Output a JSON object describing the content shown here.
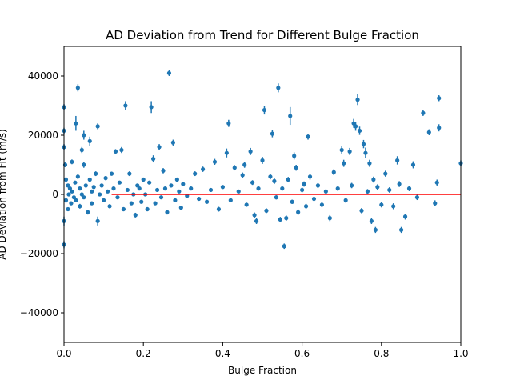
{
  "chart_data": {
    "type": "scatter",
    "title": "AD Deviation from Trend for Different Bulge Fraction",
    "xlabel": "Bulge Fraction",
    "ylabel": "AD Deviation from Fit (m/s)",
    "xlim": [
      0.0,
      1.0
    ],
    "ylim": [
      -50000,
      50000
    ],
    "xticks": [
      0.0,
      0.2,
      0.4,
      0.6,
      0.8,
      1.0
    ],
    "xtick_labels": [
      "0.0",
      "0.2",
      "0.4",
      "0.6",
      "0.8",
      "1.0"
    ],
    "yticks": [
      -40000,
      -20000,
      0,
      20000,
      40000
    ],
    "ytick_labels": [
      "−40000",
      "−20000",
      "0",
      "20000",
      "40000"
    ],
    "grid": false,
    "marker_color": "#1f77b4",
    "reference_line": {
      "y": 0,
      "color": "#ff0000"
    },
    "series": [
      {
        "points": [
          [
            0.0,
            29500,
            1000
          ],
          [
            0.0,
            21500,
            1000
          ],
          [
            0.0,
            16000,
            1000
          ],
          [
            0.0,
            -17000,
            1200
          ],
          [
            0.0,
            -9000,
            1500
          ],
          [
            0.003,
            10000,
            800
          ],
          [
            0.005,
            5000,
            800
          ],
          [
            0.005,
            -2000,
            800
          ],
          [
            0.01,
            3000,
            600
          ],
          [
            0.01,
            -5000,
            600
          ],
          [
            0.012,
            0,
            600
          ],
          [
            0.015,
            2000,
            500
          ],
          [
            0.018,
            -3000,
            500
          ],
          [
            0.02,
            11000,
            800
          ],
          [
            0.02,
            1000,
            600
          ],
          [
            0.025,
            -1000,
            500
          ],
          [
            0.028,
            4000,
            600
          ],
          [
            0.03,
            24000,
            2500
          ],
          [
            0.03,
            -2000,
            500
          ],
          [
            0.035,
            36000,
            1200
          ],
          [
            0.035,
            6000,
            800
          ],
          [
            0.04,
            2000,
            500
          ],
          [
            0.04,
            -4000,
            800
          ],
          [
            0.045,
            15000,
            1000
          ],
          [
            0.045,
            0,
            500
          ],
          [
            0.05,
            20000,
            1500
          ],
          [
            0.05,
            10000,
            1000
          ],
          [
            0.05,
            -1000,
            500
          ],
          [
            0.055,
            3000,
            600
          ],
          [
            0.06,
            -6000,
            800
          ],
          [
            0.065,
            18000,
            1500
          ],
          [
            0.065,
            5000,
            700
          ],
          [
            0.07,
            1000,
            500
          ],
          [
            0.07,
            -3000,
            500
          ],
          [
            0.075,
            2500,
            600
          ],
          [
            0.08,
            7000,
            800
          ],
          [
            0.085,
            23000,
            1000
          ],
          [
            0.085,
            -9000,
            1500
          ],
          [
            0.09,
            0,
            500
          ],
          [
            0.095,
            3000,
            600
          ],
          [
            0.1,
            -2000,
            500
          ],
          [
            0.105,
            5500,
            700
          ],
          [
            0.11,
            1000,
            500
          ],
          [
            0.115,
            -4000,
            700
          ],
          [
            0.12,
            7000,
            700
          ],
          [
            0.125,
            2000,
            600
          ],
          [
            0.13,
            14500,
            800
          ],
          [
            0.135,
            -1000,
            500
          ],
          [
            0.14,
            4000,
            600
          ],
          [
            0.145,
            15000,
            1000
          ],
          [
            0.15,
            -5000,
            700
          ],
          [
            0.155,
            30000,
            1500
          ],
          [
            0.16,
            1500,
            500
          ],
          [
            0.165,
            7000,
            800
          ],
          [
            0.17,
            -3000,
            600
          ],
          [
            0.175,
            0,
            500
          ],
          [
            0.18,
            -7000,
            800
          ],
          [
            0.185,
            3000,
            600
          ],
          [
            0.19,
            2000,
            600
          ],
          [
            0.195,
            -2500,
            600
          ],
          [
            0.2,
            5000,
            700
          ],
          [
            0.205,
            0,
            500
          ],
          [
            0.21,
            -5000,
            700
          ],
          [
            0.215,
            4000,
            600
          ],
          [
            0.22,
            29500,
            2000
          ],
          [
            0.225,
            12000,
            1200
          ],
          [
            0.23,
            -3000,
            600
          ],
          [
            0.235,
            1500,
            600
          ],
          [
            0.24,
            16000,
            1000
          ],
          [
            0.245,
            -1000,
            500
          ],
          [
            0.25,
            8000,
            900
          ],
          [
            0.255,
            2000,
            600
          ],
          [
            0.26,
            -6000,
            800
          ],
          [
            0.265,
            41000,
            1000
          ],
          [
            0.27,
            3000,
            600
          ],
          [
            0.275,
            17500,
            1000
          ],
          [
            0.28,
            -2000,
            600
          ],
          [
            0.285,
            5000,
            700
          ],
          [
            0.29,
            1000,
            500
          ],
          [
            0.295,
            -4500,
            700
          ],
          [
            0.3,
            3500,
            600
          ],
          [
            0.31,
            -500,
            500
          ],
          [
            0.32,
            2000,
            600
          ],
          [
            0.33,
            7000,
            800
          ],
          [
            0.34,
            -1500,
            600
          ],
          [
            0.35,
            8500,
            900
          ],
          [
            0.36,
            -2500,
            600
          ],
          [
            0.37,
            1500,
            600
          ],
          [
            0.38,
            11000,
            1000
          ],
          [
            0.39,
            -5000,
            800
          ],
          [
            0.4,
            2500,
            600
          ],
          [
            0.41,
            14000,
            1500
          ],
          [
            0.415,
            24000,
            1200
          ],
          [
            0.42,
            -2000,
            600
          ],
          [
            0.43,
            9000,
            900
          ],
          [
            0.44,
            1000,
            600
          ],
          [
            0.45,
            6500,
            900
          ],
          [
            0.455,
            10000,
            1000
          ],
          [
            0.46,
            -3500,
            700
          ],
          [
            0.47,
            14500,
            1200
          ],
          [
            0.475,
            4000,
            800
          ],
          [
            0.48,
            -7000,
            900
          ],
          [
            0.485,
            -9000,
            1000
          ],
          [
            0.49,
            2000,
            700
          ],
          [
            0.5,
            11500,
            1200
          ],
          [
            0.505,
            28500,
            1500
          ],
          [
            0.51,
            -5500,
            800
          ],
          [
            0.52,
            6000,
            900
          ],
          [
            0.525,
            20500,
            1200
          ],
          [
            0.53,
            4500,
            1000
          ],
          [
            0.535,
            -1000,
            700
          ],
          [
            0.54,
            36000,
            1500
          ],
          [
            0.545,
            -8500,
            900
          ],
          [
            0.55,
            2000,
            700
          ],
          [
            0.555,
            -17500,
            900
          ],
          [
            0.56,
            -8000,
            900
          ],
          [
            0.565,
            5000,
            900
          ],
          [
            0.57,
            26500,
            3000
          ],
          [
            0.575,
            -2500,
            700
          ],
          [
            0.58,
            13000,
            1200
          ],
          [
            0.585,
            9000,
            1000
          ],
          [
            0.59,
            -6000,
            900
          ],
          [
            0.6,
            1500,
            800
          ],
          [
            0.605,
            3500,
            900
          ],
          [
            0.61,
            -4000,
            800
          ],
          [
            0.615,
            19500,
            1000
          ],
          [
            0.62,
            6000,
            1000
          ],
          [
            0.63,
            -1500,
            700
          ],
          [
            0.64,
            3000,
            800
          ],
          [
            0.65,
            -3500,
            800
          ],
          [
            0.66,
            1000,
            700
          ],
          [
            0.67,
            -8000,
            1000
          ],
          [
            0.68,
            7500,
            1000
          ],
          [
            0.69,
            2000,
            800
          ],
          [
            0.7,
            15000,
            1200
          ],
          [
            0.705,
            10500,
            1200
          ],
          [
            0.71,
            -2000,
            800
          ],
          [
            0.72,
            14500,
            1200
          ],
          [
            0.725,
            3000,
            900
          ],
          [
            0.73,
            24000,
            1500
          ],
          [
            0.735,
            23000,
            1500
          ],
          [
            0.74,
            32000,
            1800
          ],
          [
            0.745,
            21500,
            1400
          ],
          [
            0.75,
            -5500,
            900
          ],
          [
            0.755,
            17000,
            1400
          ],
          [
            0.76,
            14000,
            1800
          ],
          [
            0.765,
            1000,
            800
          ],
          [
            0.77,
            10500,
            1200
          ],
          [
            0.775,
            -9000,
            1000
          ],
          [
            0.78,
            5000,
            1000
          ],
          [
            0.785,
            -12000,
            1000
          ],
          [
            0.79,
            2500,
            900
          ],
          [
            0.8,
            -3500,
            900
          ],
          [
            0.81,
            7000,
            1000
          ],
          [
            0.82,
            1500,
            900
          ],
          [
            0.83,
            -4000,
            1000
          ],
          [
            0.84,
            11500,
            1400
          ],
          [
            0.845,
            3500,
            1000
          ],
          [
            0.85,
            -12000,
            1000
          ],
          [
            0.86,
            -7500,
            1000
          ],
          [
            0.87,
            2000,
            900
          ],
          [
            0.88,
            10000,
            1200
          ],
          [
            0.89,
            -1000,
            900
          ],
          [
            0.905,
            27500,
            1000
          ],
          [
            0.92,
            21000,
            1000
          ],
          [
            0.935,
            -3000,
            1000
          ],
          [
            0.94,
            4000,
            1000
          ],
          [
            0.945,
            22500,
            1200
          ],
          [
            0.945,
            32500,
            1000
          ],
          [
            1.0,
            10500,
            1000
          ]
        ]
      }
    ]
  }
}
